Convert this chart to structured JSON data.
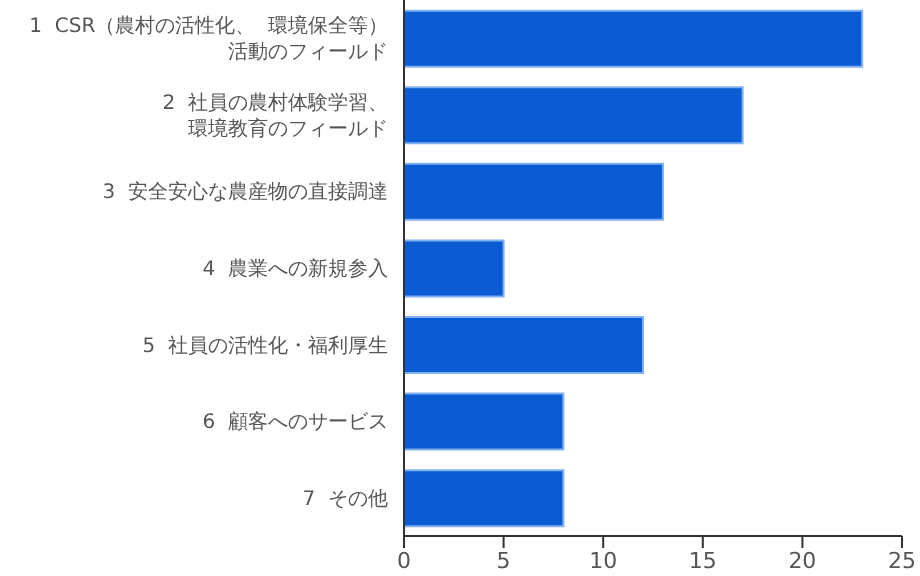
{
  "chart_data": {
    "type": "bar",
    "orientation": "horizontal",
    "categories": [
      "1 CSR（農村の活性化、 環境保全等）活動のフィールド",
      "2 社員の農村体験学習、環境教育のフィールド",
      "3 安全安心な農産物の直接調達",
      "4 農業への新規参入",
      "5 社員の活性化・福利厚生",
      "6 顧客へのサービス",
      "7 その他"
    ],
    "values": [
      23,
      17,
      13,
      5,
      12,
      8,
      8
    ],
    "color": "#0b5bd3",
    "xlim": [
      0,
      25
    ],
    "xticks": [
      0,
      5,
      10,
      15,
      20,
      25
    ],
    "grid": false
  }
}
